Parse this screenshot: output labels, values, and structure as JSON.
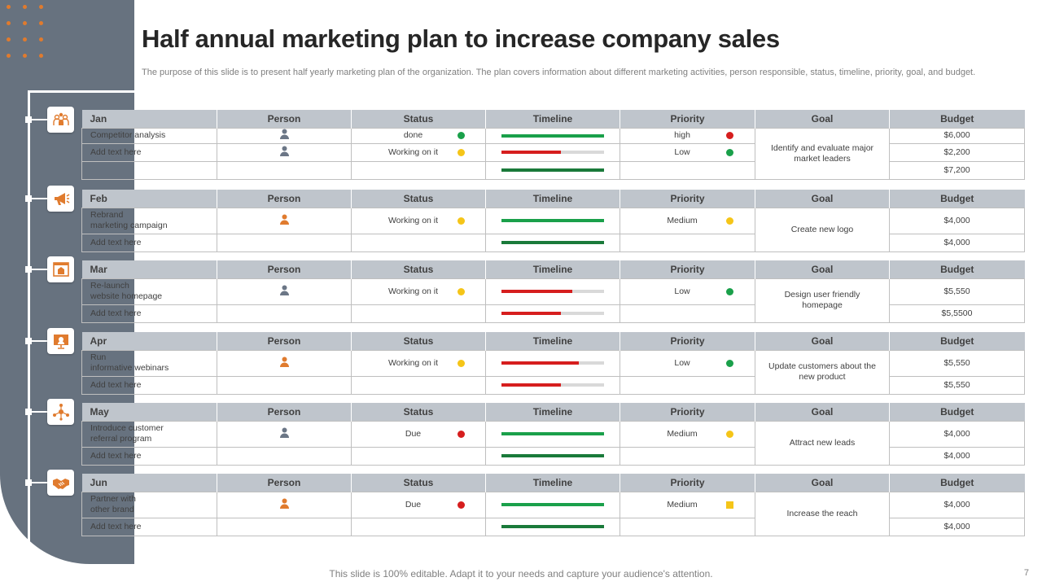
{
  "title": "Half annual marketing plan to increase company sales",
  "description": "The purpose of this slide is to present half yearly  marketing plan of the organization. The plan covers information about different marketing activities, person responsible, status, timeline, priority, goal, and budget.",
  "headers": {
    "person": "Person",
    "status": "Status",
    "timeline": "Timeline",
    "priority": "Priority",
    "goal": "Goal",
    "budget": "Budget"
  },
  "colors": {
    "green": "#1aa04a",
    "dark_green": "#1a7a3a",
    "red": "#d61e1e",
    "yellow": "#f5c518",
    "orange": "#e07b2e",
    "slate": "#67727f",
    "header_bg": "#bfc5cc",
    "person_gray": "#6b7686",
    "person_orange": "#e07b2e"
  },
  "months": [
    {
      "month": "Jan",
      "icon": "team-icon",
      "goal": "Identify and evaluate major market leaders",
      "rows": [
        {
          "activity": "Competitor analysis",
          "person_icon": "person-icon",
          "person_color": "gray",
          "status": "done",
          "status_color": "green",
          "timeline_progress": 1.0,
          "timeline_color": "green",
          "priority": "high",
          "priority_color": "red",
          "priority_shape": "circle",
          "budget": "$6,000"
        },
        {
          "activity": "Add text here",
          "person_icon": "person-icon",
          "person_color": "gray",
          "status": "Working on it",
          "status_color": "yellow",
          "timeline_progress": 0.58,
          "timeline_color": "red",
          "priority": "Low",
          "priority_color": "green",
          "priority_shape": "circle",
          "budget": "$2,200"
        },
        {
          "activity": "",
          "person_icon": "",
          "status": "",
          "timeline_progress": 1.0,
          "timeline_color": "dark_green",
          "priority": "",
          "budget": "$7,200"
        }
      ]
    },
    {
      "month": "Feb",
      "icon": "megaphone-icon",
      "goal": "Create new logo",
      "rows": [
        {
          "activity": "Rebrand\nmarketing campaign",
          "person_icon": "person-icon",
          "person_color": "orange",
          "status": "Working on it",
          "status_color": "yellow",
          "timeline_progress": 1.0,
          "timeline_color": "green",
          "priority": "Medium",
          "priority_color": "yellow",
          "priority_shape": "circle",
          "budget": "$4,000"
        },
        {
          "activity": "Add text here",
          "person_icon": "",
          "status": "",
          "timeline_progress": 1.0,
          "timeline_color": "dark_green",
          "priority": "",
          "budget": "$4,000"
        }
      ]
    },
    {
      "month": "Mar",
      "icon": "website-icon",
      "goal": "Design user friendly homepage",
      "rows": [
        {
          "activity": "Re-launch\nwebsite homepage",
          "person_icon": "person-icon",
          "person_color": "gray",
          "status": "Working on it",
          "status_color": "yellow",
          "timeline_progress": 0.69,
          "timeline_color": "red",
          "priority": "Low",
          "priority_color": "green",
          "priority_shape": "circle",
          "budget": "$5,550"
        },
        {
          "activity": "Add text here",
          "person_icon": "",
          "status": "",
          "timeline_progress": 0.58,
          "timeline_color": "red",
          "priority": "",
          "budget": "$5,5500"
        }
      ]
    },
    {
      "month": "Apr",
      "icon": "webinar-icon",
      "goal": "Update customers about the new product",
      "rows": [
        {
          "activity": "Run\ninformative webinars",
          "person_icon": "person-icon",
          "person_color": "orange",
          "status": "Working on it",
          "status_color": "yellow",
          "timeline_progress": 0.75,
          "timeline_color": "red",
          "priority": "Low",
          "priority_color": "green",
          "priority_shape": "circle",
          "budget": "$5,550"
        },
        {
          "activity": "Add text here",
          "person_icon": "",
          "status": "",
          "timeline_progress": 0.58,
          "timeline_color": "red",
          "priority": "",
          "budget": "$5,550"
        }
      ]
    },
    {
      "month": "May",
      "icon": "referral-network-icon",
      "goal": "Attract new leads",
      "rows": [
        {
          "activity": "Introduce customer\nreferral program",
          "person_icon": "person-icon",
          "person_color": "gray",
          "status": "Due",
          "status_color": "red",
          "timeline_progress": 1.0,
          "timeline_color": "green",
          "priority": "Medium",
          "priority_color": "yellow",
          "priority_shape": "circle",
          "budget": "$4,000"
        },
        {
          "activity": "Add text here",
          "person_icon": "",
          "status": "",
          "timeline_progress": 1.0,
          "timeline_color": "dark_green",
          "priority": "",
          "budget": "$4,000"
        }
      ]
    },
    {
      "month": "Jun",
      "icon": "handshake-icon",
      "goal": "Increase the reach",
      "rows": [
        {
          "activity": "Partner with\nother brand",
          "person_icon": "person-icon",
          "person_color": "orange",
          "status": "Due",
          "status_color": "red",
          "timeline_progress": 1.0,
          "timeline_color": "green",
          "priority": "Medium",
          "priority_color": "yellow",
          "priority_shape": "square",
          "budget": "$4,000"
        },
        {
          "activity": "Add text here",
          "person_icon": "",
          "status": "",
          "timeline_progress": 1.0,
          "timeline_color": "dark_green",
          "priority": "",
          "budget": "$4,000"
        }
      ]
    }
  ],
  "footer": "This slide is 100% editable. Adapt it to your needs and capture your audience's attention.",
  "page_number": "7"
}
